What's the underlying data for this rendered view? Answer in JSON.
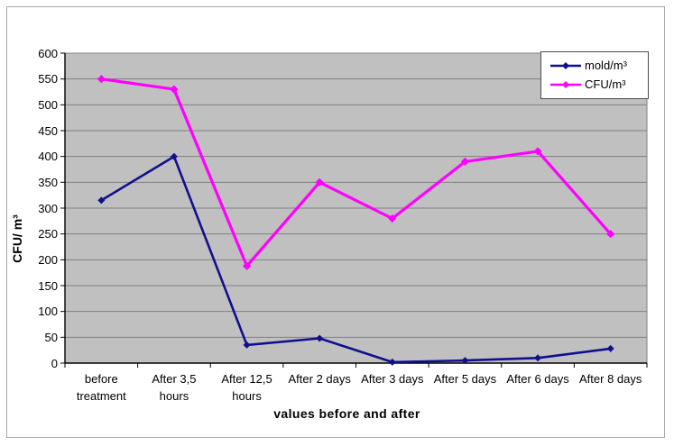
{
  "chart_data": {
    "type": "line",
    "title": "",
    "categories": [
      "before treatment",
      "After 3,5 hours",
      "After 12,5 hours",
      "After 2 days",
      "After 3 days",
      "After 5 days",
      "After 6 days",
      "After 8 days"
    ],
    "series": [
      {
        "name": "mold/m³",
        "color": "#10108e",
        "marker": "diamond",
        "values": [
          315,
          400,
          35,
          48,
          2,
          5,
          10,
          28
        ]
      },
      {
        "name": "CFU/m³",
        "color": "#ff00ff",
        "marker": "diamond",
        "values": [
          550,
          530,
          188,
          350,
          280,
          390,
          410,
          250
        ]
      }
    ],
    "xlabel": "values before and after",
    "ylabel": "CFU/ m³",
    "ylim": [
      0,
      600
    ],
    "ytick_step": 50,
    "grid": true,
    "legend_position": "top-right",
    "colors": {
      "plot_background": "#c0c0c0",
      "gridline": "#808080",
      "axis": "#000000",
      "outer_border": "#a9a9a9",
      "legend_border": "#4d4d4d",
      "page_background": "#ffffff"
    }
  }
}
